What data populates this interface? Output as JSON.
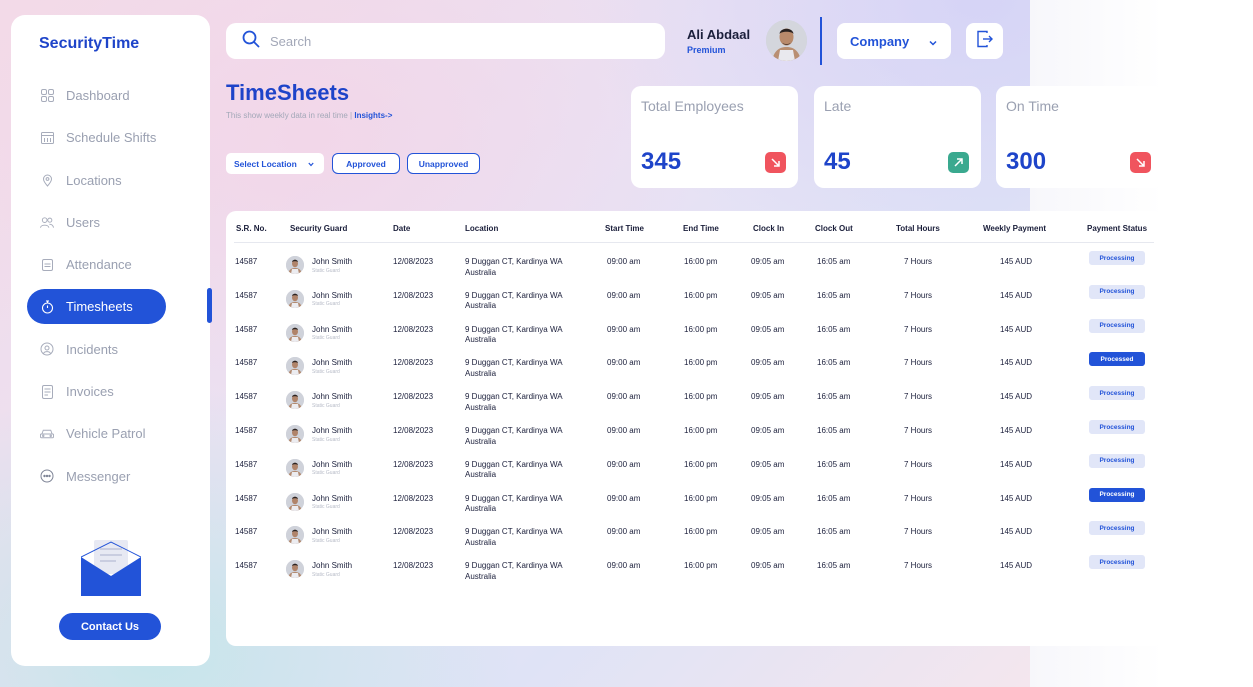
{
  "app": {
    "brand": "SecurityTime"
  },
  "sidebar": {
    "items": [
      {
        "label": "Dashboard",
        "icon": "dashboard-icon"
      },
      {
        "label": "Schedule Shifts",
        "icon": "calendar-icon"
      },
      {
        "label": "Locations",
        "icon": "location-pin-icon"
      },
      {
        "label": "Users",
        "icon": "users-icon"
      },
      {
        "label": "Attendance",
        "icon": "attendance-icon"
      },
      {
        "label": "Timesheets",
        "icon": "stopwatch-icon",
        "active": true
      },
      {
        "label": "Incidents",
        "icon": "incident-icon"
      },
      {
        "label": "Invoices",
        "icon": "invoice-icon"
      },
      {
        "label": "Vehicle Patrol",
        "icon": "car-icon"
      },
      {
        "label": "Messenger",
        "icon": "chat-icon"
      }
    ],
    "contact_label": "Contact Us"
  },
  "search": {
    "placeholder": "Search"
  },
  "user": {
    "name": "Ali Abdaal",
    "plan": "Premium"
  },
  "company_select": {
    "value": "Company"
  },
  "page": {
    "title": "TimeSheets",
    "subtitle": "This show weekly data in real time |",
    "insights_link": "Insights->"
  },
  "filters": {
    "location_select": "Select Location",
    "approved": "Approved",
    "unapproved": "Unapproved"
  },
  "stats": [
    {
      "label": "Total Employees",
      "value": "345",
      "trend": "down",
      "color": "#f0545e"
    },
    {
      "label": "Late",
      "value": "45",
      "trend": "up",
      "color": "#3aa98f"
    },
    {
      "label": "On Time",
      "value": "300",
      "trend": "down",
      "color": "#f0545e"
    }
  ],
  "table": {
    "headers": [
      "S.R. No.",
      "Security Guard",
      "Date",
      "Location",
      "Start Time",
      "End Time",
      "Clock In",
      "Clock Out",
      "Total Hours",
      "Weekly Payment",
      "Payment Status"
    ],
    "rows": [
      {
        "sr": "14587",
        "name": "John Smith",
        "role": "Static Guard",
        "date": "12/08/2023",
        "loc1": "9 Duggan CT, Kardinya WA",
        "loc2": "Australia",
        "start": "09:00 am",
        "end": "16:00 pm",
        "in": "09:05 am",
        "out": "16:05 am",
        "hours": "7 Hours",
        "pay": "145 AUD",
        "status": "Processing",
        "style": "light"
      },
      {
        "sr": "14587",
        "name": "John Smith",
        "role": "Static Guard",
        "date": "12/08/2023",
        "loc1": "9 Duggan CT, Kardinya WA",
        "loc2": "Australia",
        "start": "09:00 am",
        "end": "16:00 pm",
        "in": "09:05 am",
        "out": "16:05 am",
        "hours": "7 Hours",
        "pay": "145 AUD",
        "status": "Processing",
        "style": "light"
      },
      {
        "sr": "14587",
        "name": "John Smith",
        "role": "Static Guard",
        "date": "12/08/2023",
        "loc1": "9 Duggan CT, Kardinya WA",
        "loc2": "Australia",
        "start": "09:00 am",
        "end": "16:00 pm",
        "in": "09:05 am",
        "out": "16:05 am",
        "hours": "7 Hours",
        "pay": "145 AUD",
        "status": "Processing",
        "style": "light"
      },
      {
        "sr": "14587",
        "name": "John Smith",
        "role": "Static Guard",
        "date": "12/08/2023",
        "loc1": "9 Duggan CT, Kardinya WA",
        "loc2": "Australia",
        "start": "09:00 am",
        "end": "16:00 pm",
        "in": "09:05 am",
        "out": "16:05 am",
        "hours": "7 Hours",
        "pay": "145 AUD",
        "status": "Processed",
        "style": "dark"
      },
      {
        "sr": "14587",
        "name": "John Smith",
        "role": "Static Guard",
        "date": "12/08/2023",
        "loc1": "9 Duggan CT, Kardinya WA",
        "loc2": "Australia",
        "start": "09:00 am",
        "end": "16:00 pm",
        "in": "09:05 am",
        "out": "16:05 am",
        "hours": "7 Hours",
        "pay": "145 AUD",
        "status": "Processing",
        "style": "light"
      },
      {
        "sr": "14587",
        "name": "John Smith",
        "role": "Static Guard",
        "date": "12/08/2023",
        "loc1": "9 Duggan CT, Kardinya WA",
        "loc2": "Australia",
        "start": "09:00 am",
        "end": "16:00 pm",
        "in": "09:05 am",
        "out": "16:05 am",
        "hours": "7 Hours",
        "pay": "145 AUD",
        "status": "Processing",
        "style": "light"
      },
      {
        "sr": "14587",
        "name": "John Smith",
        "role": "Static Guard",
        "date": "12/08/2023",
        "loc1": "9 Duggan CT, Kardinya WA",
        "loc2": "Australia",
        "start": "09:00 am",
        "end": "16:00 pm",
        "in": "09:05 am",
        "out": "16:05 am",
        "hours": "7 Hours",
        "pay": "145 AUD",
        "status": "Processing",
        "style": "light"
      },
      {
        "sr": "14587",
        "name": "John Smith",
        "role": "Static Guard",
        "date": "12/08/2023",
        "loc1": "9 Duggan CT, Kardinya WA",
        "loc2": "Australia",
        "start": "09:00 am",
        "end": "16:00 pm",
        "in": "09:05 am",
        "out": "16:05 am",
        "hours": "7 Hours",
        "pay": "145 AUD",
        "status": "Processing",
        "style": "dark"
      },
      {
        "sr": "14587",
        "name": "John Smith",
        "role": "Static Guard",
        "date": "12/08/2023",
        "loc1": "9 Duggan CT, Kardinya WA",
        "loc2": "Australia",
        "start": "09:00 am",
        "end": "16:00 pm",
        "in": "09:05 am",
        "out": "16:05 am",
        "hours": "7 Hours",
        "pay": "145 AUD",
        "status": "Processing",
        "style": "light"
      },
      {
        "sr": "14587",
        "name": "John Smith",
        "role": "Static Guard",
        "date": "12/08/2023",
        "loc1": "9 Duggan CT, Kardinya WA",
        "loc2": "Australia",
        "start": "09:00 am",
        "end": "16:00 pm",
        "in": "09:05 am",
        "out": "16:05 am",
        "hours": "7 Hours",
        "pay": "145 AUD",
        "status": "Processing",
        "style": "light"
      }
    ]
  }
}
